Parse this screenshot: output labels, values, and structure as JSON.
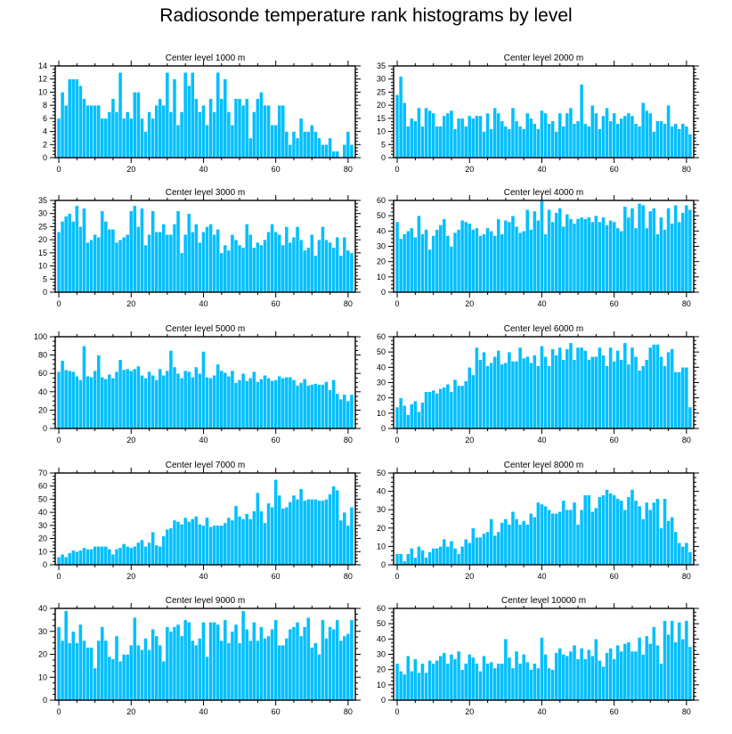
{
  "figure_title": "Radiosonde temperature rank histograms by level",
  "colors": {
    "bar": "#00bfff",
    "bar_edge": "#ffffff",
    "frame": "#000000"
  },
  "chart_data": [
    {
      "type": "bar",
      "title": "Center level 1000 m",
      "xlim": [
        -1,
        82
      ],
      "ylim": [
        0,
        14
      ],
      "xticks": [
        0,
        20,
        40,
        60,
        80
      ],
      "yticks": [
        0,
        2,
        4,
        6,
        8,
        10,
        12,
        14
      ],
      "ytick_side": "left",
      "values": [
        6,
        10,
        8,
        12,
        12,
        12,
        11,
        9,
        8,
        8,
        8,
        8,
        6,
        6,
        7,
        9,
        7,
        13,
        6,
        7,
        6,
        10,
        10,
        6,
        4,
        7,
        6,
        8,
        9,
        8,
        13,
        7,
        12,
        5,
        7,
        13,
        11,
        13,
        9,
        7,
        8,
        5,
        9,
        7,
        13,
        9,
        12,
        7,
        5,
        9,
        9,
        8,
        9,
        3,
        7,
        9,
        10,
        8,
        8,
        5,
        5,
        8,
        8,
        4,
        2,
        4,
        3,
        6,
        4,
        4,
        5,
        4,
        3,
        2,
        2,
        3,
        1,
        1,
        0,
        2,
        4,
        2
      ]
    },
    {
      "type": "bar",
      "title": "Center level 2000 m",
      "xlim": [
        -1,
        82
      ],
      "ylim": [
        0,
        35
      ],
      "xticks": [
        0,
        20,
        40,
        60,
        80
      ],
      "yticks": [
        0,
        5,
        10,
        15,
        20,
        25,
        30,
        35
      ],
      "ytick_side": "left",
      "values": [
        24,
        31,
        21,
        12,
        15,
        14,
        19,
        12,
        19,
        18,
        17,
        12,
        12,
        16,
        17,
        18,
        11,
        15,
        15,
        12,
        16,
        15,
        16,
        16,
        10,
        17,
        11,
        19,
        17,
        14,
        12,
        11,
        19,
        14,
        12,
        11,
        17,
        15,
        13,
        11,
        18,
        17,
        13,
        14,
        10,
        17,
        12,
        17,
        19,
        13,
        14,
        28,
        13,
        12,
        20,
        17,
        11,
        16,
        19,
        14,
        17,
        13,
        15,
        16,
        17,
        16,
        13,
        12,
        21,
        18,
        17,
        10,
        14,
        14,
        13,
        20,
        12,
        13,
        11,
        13,
        12,
        9
      ]
    },
    {
      "type": "bar",
      "title": "Center level 3000 m",
      "xlim": [
        -1,
        82
      ],
      "ylim": [
        0,
        35
      ],
      "xticks": [
        0,
        20,
        40,
        60,
        80
      ],
      "yticks": [
        0,
        5,
        10,
        15,
        20,
        25,
        30,
        35
      ],
      "ytick_side": "left",
      "values": [
        23,
        27,
        29,
        30,
        27,
        33,
        25,
        32,
        19,
        20,
        22,
        21,
        31,
        27,
        24,
        24,
        19,
        20,
        21,
        22,
        31,
        33,
        25,
        32,
        18,
        22,
        31,
        23,
        23,
        26,
        22,
        22,
        26,
        31,
        15,
        22,
        30,
        23,
        26,
        19,
        23,
        25,
        26,
        22,
        24,
        15,
        18,
        16,
        22,
        20,
        18,
        17,
        26,
        22,
        17,
        19,
        18,
        20,
        23,
        26,
        23,
        22,
        18,
        25,
        19,
        21,
        25,
        20,
        16,
        17,
        22,
        14,
        20,
        25,
        20,
        19,
        17,
        21,
        14,
        21,
        16,
        15
      ]
    },
    {
      "type": "bar",
      "title": "Center level 4000 m",
      "xlim": [
        -1,
        82
      ],
      "ylim": [
        0,
        60
      ],
      "xticks": [
        0,
        20,
        40,
        60,
        80
      ],
      "yticks": [
        0,
        10,
        20,
        30,
        40,
        50,
        60
      ],
      "ytick_side": "left",
      "values": [
        46,
        35,
        38,
        40,
        42,
        36,
        50,
        38,
        41,
        28,
        37,
        41,
        44,
        48,
        37,
        30,
        39,
        41,
        47,
        46,
        45,
        41,
        42,
        37,
        38,
        42,
        40,
        37,
        48,
        38,
        47,
        46,
        50,
        43,
        39,
        40,
        54,
        41,
        53,
        47,
        60,
        38,
        54,
        46,
        52,
        55,
        43,
        51,
        48,
        45,
        48,
        49,
        48,
        49,
        46,
        50,
        46,
        49,
        44,
        47,
        46,
        42,
        40,
        56,
        49,
        55,
        42,
        58,
        57,
        42,
        53,
        55,
        38,
        49,
        41,
        55,
        45,
        57,
        46,
        52,
        57,
        54
      ]
    },
    {
      "type": "bar",
      "title": "Center level 5000 m",
      "xlim": [
        -1,
        82
      ],
      "ylim": [
        0,
        100
      ],
      "xticks": [
        0,
        20,
        40,
        60,
        80
      ],
      "yticks": [
        0,
        20,
        40,
        60,
        80,
        100
      ],
      "ytick_side": "left",
      "values": [
        62,
        74,
        64,
        63,
        62,
        57,
        53,
        90,
        57,
        56,
        63,
        80,
        56,
        54,
        59,
        55,
        62,
        75,
        64,
        65,
        63,
        65,
        68,
        58,
        55,
        62,
        58,
        53,
        65,
        58,
        63,
        85,
        67,
        60,
        55,
        63,
        62,
        56,
        67,
        60,
        84,
        56,
        55,
        58,
        70,
        63,
        61,
        57,
        63,
        50,
        53,
        60,
        52,
        55,
        62,
        51,
        54,
        58,
        55,
        52,
        53,
        57,
        55,
        56,
        56,
        53,
        47,
        50,
        54,
        47,
        48,
        49,
        48,
        48,
        51,
        42,
        53,
        38,
        32,
        37,
        30,
        37
      ]
    },
    {
      "type": "bar",
      "title": "Center level 6000 m",
      "xlim": [
        -1,
        82
      ],
      "ylim": [
        0,
        60
      ],
      "xticks": [
        0,
        20,
        40,
        60,
        80
      ],
      "yticks": [
        0,
        10,
        20,
        30,
        40,
        50,
        60
      ],
      "ytick_side": "left",
      "values": [
        14,
        20,
        15,
        9,
        16,
        18,
        11,
        17,
        24,
        24,
        25,
        23,
        26,
        27,
        29,
        24,
        32,
        28,
        28,
        31,
        40,
        35,
        53,
        45,
        50,
        41,
        43,
        47,
        51,
        42,
        43,
        50,
        44,
        44,
        53,
        46,
        47,
        43,
        48,
        41,
        54,
        47,
        41,
        52,
        48,
        53,
        45,
        52,
        56,
        45,
        53,
        53,
        51,
        45,
        47,
        47,
        53,
        48,
        41,
        53,
        44,
        51,
        45,
        56,
        42,
        53,
        47,
        38,
        41,
        45,
        53,
        55,
        55,
        47,
        41,
        50,
        52,
        37,
        37,
        40,
        40,
        14
      ]
    },
    {
      "type": "bar",
      "title": "Center level 7000 m",
      "xlim": [
        -1,
        82
      ],
      "ylim": [
        0,
        70
      ],
      "xticks": [
        0,
        20,
        40,
        60,
        80
      ],
      "yticks": [
        0,
        10,
        20,
        30,
        40,
        50,
        60,
        70
      ],
      "ytick_side": "left",
      "values": [
        6,
        8,
        6,
        9,
        11,
        10,
        11,
        13,
        12,
        12,
        14,
        14,
        14,
        14,
        12,
        8,
        12,
        13,
        16,
        14,
        13,
        14,
        17,
        19,
        14,
        17,
        25,
        15,
        14,
        22,
        27,
        28,
        34,
        33,
        31,
        36,
        33,
        35,
        37,
        31,
        30,
        36,
        29,
        30,
        30,
        30,
        32,
        36,
        34,
        45,
        37,
        35,
        39,
        35,
        41,
        55,
        41,
        32,
        47,
        44,
        65,
        53,
        43,
        44,
        48,
        53,
        50,
        58,
        49,
        50,
        50,
        50,
        49,
        49,
        50,
        54,
        60,
        57,
        34,
        40,
        30,
        44
      ]
    },
    {
      "type": "bar",
      "title": "Center level 8000 m",
      "xlim": [
        -1,
        82
      ],
      "ylim": [
        0,
        50
      ],
      "xticks": [
        0,
        20,
        40,
        60,
        80
      ],
      "yticks": [
        0,
        10,
        20,
        30,
        40,
        50
      ],
      "ytick_side": "left",
      "values": [
        6,
        6,
        2,
        6,
        9,
        4,
        10,
        8,
        4,
        7,
        9,
        9,
        10,
        14,
        10,
        13,
        9,
        6,
        10,
        14,
        12,
        20,
        15,
        15,
        17,
        18,
        25,
        16,
        18,
        23,
        25,
        22,
        29,
        25,
        22,
        24,
        22,
        28,
        26,
        34,
        33,
        32,
        30,
        28,
        28,
        29,
        35,
        30,
        30,
        34,
        22,
        30,
        38,
        38,
        29,
        31,
        37,
        38,
        41,
        39,
        38,
        36,
        35,
        30,
        37,
        41,
        35,
        32,
        25,
        34,
        30,
        34,
        36,
        20,
        36,
        24,
        26,
        18,
        12,
        10,
        12,
        7
      ]
    },
    {
      "type": "bar",
      "title": "Center level 9000 m",
      "xlim": [
        -1,
        82
      ],
      "ylim": [
        0,
        40
      ],
      "xticks": [
        0,
        20,
        40,
        60,
        80
      ],
      "yticks": [
        0,
        10,
        20,
        30,
        40
      ],
      "ytick_side": "left",
      "values": [
        32,
        26,
        39,
        25,
        30,
        25,
        33,
        26,
        23,
        23,
        14,
        26,
        32,
        26,
        19,
        18,
        28,
        17,
        20,
        20,
        24,
        36,
        24,
        22,
        27,
        22,
        31,
        28,
        24,
        17,
        32,
        30,
        32,
        33,
        28,
        35,
        34,
        26,
        24,
        27,
        34,
        19,
        34,
        34,
        33,
        26,
        35,
        25,
        30,
        33,
        25,
        39,
        31,
        26,
        34,
        26,
        32,
        27,
        28,
        31,
        35,
        24,
        24,
        27,
        31,
        32,
        34,
        28,
        32,
        36,
        23,
        25,
        20,
        35,
        27,
        32,
        31,
        35,
        26,
        28,
        29,
        35
      ]
    },
    {
      "type": "bar",
      "title": "Center level 10000 m",
      "xlim": [
        -1,
        82
      ],
      "ylim": [
        0,
        60
      ],
      "xticks": [
        0,
        20,
        40,
        60,
        80
      ],
      "yticks": [
        0,
        10,
        20,
        30,
        40,
        50,
        60
      ],
      "ytick_side": "left",
      "values": [
        24,
        19,
        17,
        29,
        19,
        27,
        18,
        24,
        18,
        26,
        24,
        26,
        29,
        31,
        24,
        30,
        27,
        32,
        20,
        24,
        30,
        28,
        24,
        19,
        29,
        24,
        25,
        21,
        24,
        24,
        40,
        28,
        21,
        32,
        24,
        30,
        25,
        20,
        24,
        21,
        41,
        30,
        21,
        20,
        31,
        34,
        30,
        29,
        32,
        36,
        27,
        34,
        27,
        33,
        29,
        40,
        26,
        22,
        31,
        34,
        27,
        36,
        32,
        37,
        38,
        32,
        32,
        41,
        30,
        42,
        37,
        48,
        36,
        24,
        52,
        43,
        52,
        38,
        51,
        40,
        52,
        35
      ]
    }
  ]
}
